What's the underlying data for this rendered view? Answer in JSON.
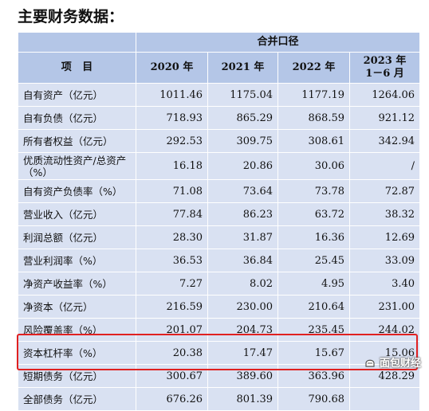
{
  "heading": "主要财务数据：",
  "table": {
    "group_header": "合并口径",
    "item_header": "项   目",
    "year_headers": [
      "2020 年",
      "2021 年",
      "2022 年"
    ],
    "last_year_header": {
      "line1": "2023 年",
      "line2": "1－6 月"
    },
    "rows": [
      {
        "label": "自有资产（亿元）",
        "values": [
          "1011.46",
          "1175.04",
          "1177.19",
          "1264.06"
        ]
      },
      {
        "label": "自有负债（亿元）",
        "values": [
          "718.93",
          "865.29",
          "868.59",
          "921.12"
        ]
      },
      {
        "label": "所有者权益（亿元）",
        "values": [
          "292.53",
          "309.75",
          "308.61",
          "342.94"
        ]
      },
      {
        "label": "优质流动性资产/总资产（%）",
        "values": [
          "16.18",
          "20.86",
          "30.06",
          "/"
        ]
      },
      {
        "label": "自有资产负债率（%）",
        "values": [
          "71.08",
          "73.64",
          "73.78",
          "72.87"
        ]
      },
      {
        "label": "营业收入（亿元）",
        "values": [
          "77.84",
          "86.23",
          "63.72",
          "38.32"
        ]
      },
      {
        "label": "利润总额（亿元）",
        "values": [
          "28.30",
          "31.87",
          "16.36",
          "12.69"
        ]
      },
      {
        "label": "营业利润率（%）",
        "values": [
          "36.53",
          "36.84",
          "25.45",
          "33.09"
        ]
      },
      {
        "label": "净资产收益率（%）",
        "values": [
          "7.27",
          "8.02",
          "4.95",
          "3.40"
        ]
      },
      {
        "label": "净资本（亿元）",
        "values": [
          "216.59",
          "230.00",
          "210.64",
          "231.00"
        ]
      },
      {
        "label": "风险覆盖率（%）",
        "values": [
          "201.07",
          "204.73",
          "235.45",
          "244.02"
        ]
      },
      {
        "label": "资本杠杆率（%）",
        "values": [
          "20.38",
          "17.47",
          "15.67",
          "15.06"
        ]
      },
      {
        "label": "短期债务（亿元）",
        "values": [
          "300.67",
          "389.60",
          "363.96",
          "428.29"
        ]
      },
      {
        "label": "全部债务（亿元）",
        "values": [
          "676.26",
          "801.39",
          "790.68",
          ""
        ]
      }
    ]
  },
  "watermark": {
    "text": "面包财经",
    "icon": "bread-logo-icon"
  },
  "colors": {
    "header_bg": "#b4c6e7",
    "cell_bg": "#d9e1f2",
    "highlight_border": "#e02020"
  }
}
